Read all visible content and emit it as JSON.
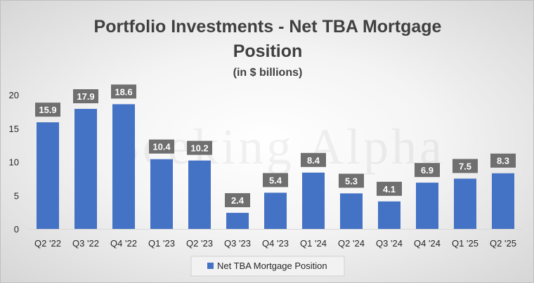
{
  "chart_data": {
    "type": "bar",
    "title": "Portfolio Investments - Net TBA Mortgage Position",
    "title_lines": [
      "Portfolio Investments - Net TBA Mortgage",
      "Position"
    ],
    "subtitle": "(in $ billions)",
    "categories": [
      "Q2 '22",
      "Q3 '22",
      "Q4 '22",
      "Q1 '23",
      "Q2 '23",
      "Q3 '23",
      "Q4 '23",
      "Q1 '24",
      "Q2 '24",
      "Q3 '24",
      "Q4 '24",
      "Q1 '25",
      "Q2 '25"
    ],
    "series": [
      {
        "name": "Net TBA Mortgage Position",
        "values": [
          15.9,
          17.9,
          18.6,
          10.4,
          10.2,
          2.4,
          5.4,
          8.4,
          5.3,
          4.1,
          6.9,
          7.5,
          8.3
        ],
        "color": "#4472c4"
      }
    ],
    "ylim": [
      0,
      20
    ],
    "yticks": [
      0,
      5,
      10,
      15,
      20
    ],
    "grid": false,
    "legend_placement": "bottom",
    "data_label_bg": "#6f6f6f",
    "watermark": "Seeking Alpha"
  }
}
